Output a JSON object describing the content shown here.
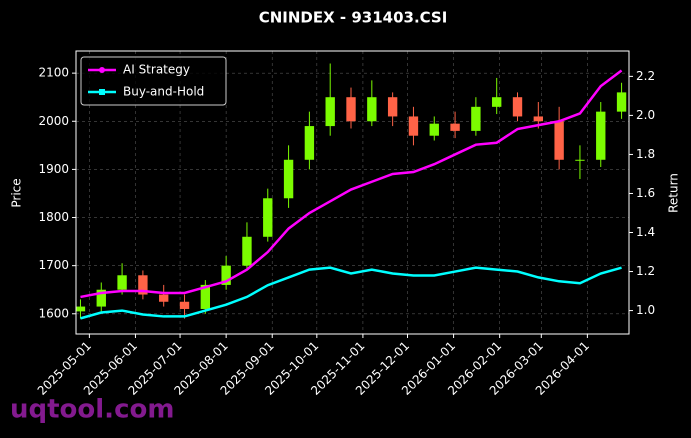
{
  "chart_data": {
    "type": "candlestick",
    "title": "CNINDEX - 931403.CSI",
    "ylabel": "Price",
    "y2label": "Return",
    "watermark": "uqtool.com",
    "x": [
      "2025-04-25",
      "2025-05-09",
      "2025-05-23",
      "2025-06-06",
      "2025-06-20",
      "2025-07-04",
      "2025-07-18",
      "2025-08-01",
      "2025-08-15",
      "2025-08-29",
      "2025-09-12",
      "2025-09-26",
      "2025-10-10",
      "2025-10-24",
      "2025-11-07",
      "2025-11-21",
      "2025-12-05",
      "2025-12-19",
      "2026-01-02",
      "2026-01-16",
      "2026-01-30",
      "2026-02-13",
      "2026-02-27",
      "2026-03-13",
      "2026-03-27",
      "2026-04-10",
      "2026-04-24"
    ],
    "open": [
      1605,
      1615,
      1650,
      1680,
      1640,
      1625,
      1610,
      1660,
      1700,
      1760,
      1840,
      1920,
      1990,
      2050,
      2000,
      2050,
      2010,
      1970,
      1995,
      1980,
      2030,
      2050,
      2010,
      2000,
      1920,
      1920,
      2020
    ],
    "high": [
      1630,
      1665,
      1705,
      1690,
      1660,
      1640,
      1670,
      1720,
      1790,
      1860,
      1950,
      2020,
      2120,
      2070,
      2085,
      2060,
      2030,
      2010,
      2020,
      2050,
      2090,
      2060,
      2040,
      2030,
      1950,
      2040,
      2080
    ],
    "low": [
      1590,
      1605,
      1640,
      1630,
      1615,
      1590,
      1600,
      1650,
      1690,
      1750,
      1820,
      1900,
      1970,
      1985,
      1990,
      1990,
      1950,
      1960,
      1965,
      1970,
      2015,
      2000,
      1985,
      1900,
      1880,
      1905,
      2005
    ],
    "close": [
      1615,
      1650,
      1680,
      1640,
      1625,
      1610,
      1660,
      1700,
      1760,
      1840,
      1920,
      1990,
      2050,
      2000,
      2050,
      2010,
      1970,
      1995,
      1980,
      2030,
      2050,
      2010,
      2000,
      1920,
      1920,
      2020,
      2060
    ],
    "up_color": "#7cfc00",
    "down_color": "#ff6347",
    "series": [
      {
        "name": "AI Strategy",
        "color": "#ff00ff",
        "marker": "circle",
        "axis": "y2",
        "values": [
          1.07,
          1.09,
          1.1,
          1.1,
          1.09,
          1.09,
          1.12,
          1.15,
          1.21,
          1.3,
          1.42,
          1.5,
          1.56,
          1.62,
          1.66,
          1.7,
          1.71,
          1.75,
          1.8,
          1.85,
          1.86,
          1.93,
          1.95,
          1.97,
          2.01,
          2.15,
          2.23
        ]
      },
      {
        "name": "Buy-and-Hold",
        "color": "#00ffff",
        "marker": "square",
        "axis": "y2",
        "values": [
          0.96,
          0.99,
          1.0,
          0.98,
          0.97,
          0.97,
          1.0,
          1.03,
          1.07,
          1.13,
          1.17,
          1.21,
          1.22,
          1.19,
          1.21,
          1.19,
          1.18,
          1.18,
          1.2,
          1.22,
          1.21,
          1.2,
          1.17,
          1.15,
          1.14,
          1.19,
          1.22
        ]
      }
    ],
    "xlim": [
      "2025-04-22",
      "2026-04-29"
    ],
    "xticks": [
      "2025-05-01",
      "2025-06-01",
      "2025-07-01",
      "2025-08-01",
      "2025-09-01",
      "2025-10-01",
      "2025-11-01",
      "2025-12-01",
      "2026-01-01",
      "2026-02-01",
      "2026-03-01",
      "2026-04-01"
    ],
    "ylim": [
      1558,
      2146
    ],
    "yticks": [
      1600,
      1700,
      1800,
      1900,
      2000,
      2100
    ],
    "y2lim": [
      0.88,
      2.33
    ],
    "y2ticks": [
      {
        "value": 1,
        "label": "1.0"
      },
      {
        "value": 1.2,
        "label": "1.2"
      },
      {
        "value": 1.4,
        "label": "1.4"
      },
      {
        "value": 1.6,
        "label": "1.6"
      },
      {
        "value": 1.8,
        "label": "1.8"
      },
      {
        "value": 2,
        "label": "2.0"
      },
      {
        "value": 2.2,
        "label": "2.2"
      }
    ],
    "grid": true,
    "legend": "upper left"
  }
}
